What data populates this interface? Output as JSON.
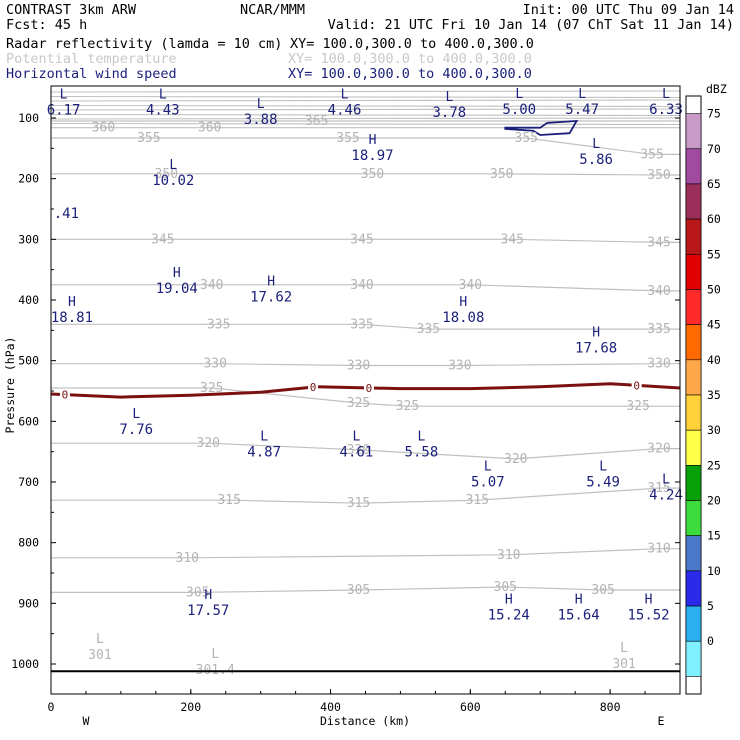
{
  "header": {
    "model": "CONTRAST  3km ARW",
    "center": "NCAR/MMM",
    "init": "Init: 00 UTC Thu 09 Jan 14",
    "fcst": "Fcst:   45 h",
    "valid": "Valid: 21 UTC Fri 10 Jan 14 (07 ChT Sat 11 Jan 14)",
    "fields": [
      {
        "name": "Radar reflectivity (lamda = 10 cm)",
        "xy": "XY= 100.0,300.0 to 400.0,300.0",
        "color": "#000000"
      },
      {
        "name": "Potential temperature",
        "xy": "XY= 100.0,300.0 to 400.0,300.0",
        "color": "#c8c8c8"
      },
      {
        "name": "Horizontal wind speed",
        "xy": "XY= 100.0,300.0 to 400.0,300.0",
        "color": "#1a1f7a"
      }
    ]
  },
  "colorbar": {
    "unit": "dBZ",
    "labels": [
      "75",
      "70",
      "65",
      "60",
      "55",
      "50",
      "45",
      "40",
      "35",
      "30",
      "25",
      "20",
      "15",
      "10",
      "5",
      "0"
    ],
    "colors": [
      "#c89ac8",
      "#a04aa0",
      "#9a2f5a",
      "#b81818",
      "#e00000",
      "#ff2a2a",
      "#ff6a00",
      "#ffa84a",
      "#ffd23a",
      "#ffff4a",
      "#0aa00a",
      "#3cdc3c",
      "#4a78c8",
      "#2a2ae8",
      "#2ab0f0",
      "#7ff0ff"
    ]
  },
  "chart_data": {
    "type": "contour",
    "xlabel": "Distance (km)",
    "ylabel": "Pressure (hPa)",
    "xlim": [
      0,
      900
    ],
    "ylim": [
      1050,
      70
    ],
    "x_ticks": [
      "0",
      "200",
      "400",
      "600",
      "800"
    ],
    "y_ticks": [
      "100",
      "200",
      "300",
      "400",
      "500",
      "600",
      "700",
      "800",
      "900",
      "1000"
    ],
    "x_end_labels": {
      "left": "W",
      "right": "E"
    },
    "theta_levels": [
      {
        "level": 365,
        "labels": [
          {
            "x": 380,
            "p": 105,
            "text": "365"
          }
        ]
      },
      {
        "level": 360,
        "labels": [
          {
            "x": 75,
            "p": 116,
            "text": "360"
          },
          {
            "x": 227,
            "p": 116,
            "text": "360"
          }
        ]
      },
      {
        "level": 355,
        "labels": [
          {
            "x": 140,
            "p": 133,
            "text": "355"
          },
          {
            "x": 425,
            "p": 133,
            "text": "355"
          },
          {
            "x": 680,
            "p": 133,
            "text": "355"
          },
          {
            "x": 860,
            "p": 160,
            "text": "355"
          }
        ]
      },
      {
        "level": 350,
        "labels": [
          {
            "x": 165,
            "p": 192,
            "text": "350"
          },
          {
            "x": 460,
            "p": 192,
            "text": "350"
          },
          {
            "x": 645,
            "p": 192,
            "text": "350"
          },
          {
            "x": 870,
            "p": 194,
            "text": "350"
          }
        ]
      },
      {
        "level": 345,
        "labels": [
          {
            "x": 160,
            "p": 300,
            "text": "345"
          },
          {
            "x": 445,
            "p": 300,
            "text": "345"
          },
          {
            "x": 660,
            "p": 300,
            "text": "345"
          },
          {
            "x": 870,
            "p": 305,
            "text": "345"
          }
        ]
      },
      {
        "level": 340,
        "labels": [
          {
            "x": 230,
            "p": 375,
            "text": "340"
          },
          {
            "x": 445,
            "p": 375,
            "text": "340"
          },
          {
            "x": 600,
            "p": 375,
            "text": "340"
          },
          {
            "x": 870,
            "p": 385,
            "text": "340"
          }
        ]
      },
      {
        "level": 335,
        "labels": [
          {
            "x": 240,
            "p": 440,
            "text": "335"
          },
          {
            "x": 445,
            "p": 440,
            "text": "335"
          },
          {
            "x": 540,
            "p": 448,
            "text": "335"
          },
          {
            "x": 870,
            "p": 448,
            "text": "335"
          }
        ]
      },
      {
        "level": 330,
        "labels": [
          {
            "x": 235,
            "p": 505,
            "text": "330"
          },
          {
            "x": 440,
            "p": 508,
            "text": "330"
          },
          {
            "x": 585,
            "p": 508,
            "text": "330"
          },
          {
            "x": 870,
            "p": 505,
            "text": "330"
          }
        ]
      },
      {
        "level": 325,
        "labels": [
          {
            "x": 230,
            "p": 545,
            "text": "325"
          },
          {
            "x": 440,
            "p": 570,
            "text": "325"
          },
          {
            "x": 510,
            "p": 575,
            "text": "325"
          },
          {
            "x": 840,
            "p": 575,
            "text": "325"
          }
        ]
      },
      {
        "level": 320,
        "labels": [
          {
            "x": 225,
            "p": 636,
            "text": "320"
          },
          {
            "x": 440,
            "p": 647,
            "text": "320"
          },
          {
            "x": 665,
            "p": 662,
            "text": "320"
          },
          {
            "x": 870,
            "p": 645,
            "text": "320"
          }
        ]
      },
      {
        "level": 315,
        "labels": [
          {
            "x": 255,
            "p": 730,
            "text": "315"
          },
          {
            "x": 440,
            "p": 735,
            "text": "315"
          },
          {
            "x": 610,
            "p": 730,
            "text": "315"
          },
          {
            "x": 870,
            "p": 710,
            "text": "315"
          }
        ]
      },
      {
        "level": 310,
        "labels": [
          {
            "x": 195,
            "p": 825,
            "text": "310"
          },
          {
            "x": 655,
            "p": 820,
            "text": "310"
          },
          {
            "x": 870,
            "p": 810,
            "text": "310"
          }
        ]
      },
      {
        "level": 305,
        "labels": [
          {
            "x": 210,
            "p": 882,
            "text": "305"
          },
          {
            "x": 440,
            "p": 878,
            "text": "305"
          },
          {
            "x": 650,
            "p": 873,
            "text": "305"
          },
          {
            "x": 790,
            "p": 878,
            "text": "305"
          }
        ]
      }
    ],
    "theta_lows": [
      {
        "x": 70,
        "p": 985,
        "mark": "L",
        "text": "301"
      },
      {
        "x": 235,
        "p": 1010,
        "mark": "L",
        "text": "301.4"
      },
      {
        "x": 820,
        "p": 1000,
        "mark": "L",
        "text": "301"
      }
    ],
    "wind_extrema": [
      {
        "x": 18,
        "p": 88,
        "mark": "L",
        "text": "6.17"
      },
      {
        "x": 160,
        "p": 88,
        "mark": "L",
        "text": "4.43"
      },
      {
        "x": 300,
        "p": 103,
        "mark": "L",
        "text": "3.88"
      },
      {
        "x": 420,
        "p": 88,
        "mark": "L",
        "text": "4.46"
      },
      {
        "x": 570,
        "p": 92,
        "mark": "L",
        "text": "3.78"
      },
      {
        "x": 670,
        "p": 87,
        "mark": "L",
        "text": "5.00"
      },
      {
        "x": 760,
        "p": 87,
        "mark": "L",
        "text": "5.47"
      },
      {
        "x": 880,
        "p": 87,
        "mark": "L",
        "text": "6.33"
      },
      {
        "x": 460,
        "p": 163,
        "mark": "H",
        "text": "18.97"
      },
      {
        "x": 780,
        "p": 169,
        "mark": "L",
        "text": "5.86"
      },
      {
        "x": 175,
        "p": 204,
        "mark": "L",
        "text": "10.02"
      },
      {
        "x": 22,
        "p": 258,
        "mark": "",
        "text": ".41"
      },
      {
        "x": 180,
        "p": 382,
        "mark": "H",
        "text": "19.04"
      },
      {
        "x": 315,
        "p": 396,
        "mark": "H",
        "text": "17.62"
      },
      {
        "x": 30,
        "p": 430,
        "mark": "H",
        "text": "18.81"
      },
      {
        "x": 590,
        "p": 430,
        "mark": "H",
        "text": "18.08"
      },
      {
        "x": 780,
        "p": 480,
        "mark": "H",
        "text": "17.68"
      },
      {
        "x": 122,
        "p": 614,
        "mark": "L",
        "text": "7.76"
      },
      {
        "x": 305,
        "p": 651,
        "mark": "L",
        "text": "4.87"
      },
      {
        "x": 437,
        "p": 651,
        "mark": "L",
        "text": "4.61"
      },
      {
        "x": 530,
        "p": 651,
        "mark": "L",
        "text": "5.58"
      },
      {
        "x": 625,
        "p": 701,
        "mark": "L",
        "text": "5.07"
      },
      {
        "x": 790,
        "p": 701,
        "mark": "L",
        "text": "5.49"
      },
      {
        "x": 880,
        "p": 722,
        "mark": "L",
        "text": "4.24"
      },
      {
        "x": 225,
        "p": 913,
        "mark": "H",
        "text": "17.57"
      },
      {
        "x": 655,
        "p": 920,
        "mark": "H",
        "text": "15.24"
      },
      {
        "x": 755,
        "p": 920,
        "mark": "H",
        "text": "15.64"
      },
      {
        "x": 855,
        "p": 920,
        "mark": "H",
        "text": "15.52"
      }
    ],
    "zero_contour": {
      "color": "#7a1010",
      "label": "0",
      "points": [
        [
          0,
          555
        ],
        [
          100,
          560
        ],
        [
          200,
          557
        ],
        [
          300,
          552
        ],
        [
          380,
          543
        ],
        [
          500,
          546
        ],
        [
          600,
          546
        ],
        [
          700,
          543
        ],
        [
          800,
          538
        ],
        [
          900,
          545
        ]
      ],
      "label_x": [
        20,
        375,
        455,
        838
      ]
    },
    "reflectivity_contour": {
      "color": "#1a1f7a",
      "points": [
        [
          650,
          116
        ],
        [
          700,
          116
        ],
        [
          710,
          108
        ],
        [
          752,
          105
        ],
        [
          742,
          125
        ],
        [
          700,
          128
        ],
        [
          690,
          121
        ],
        [
          650,
          118
        ]
      ]
    },
    "surface_line_p": 1012
  }
}
